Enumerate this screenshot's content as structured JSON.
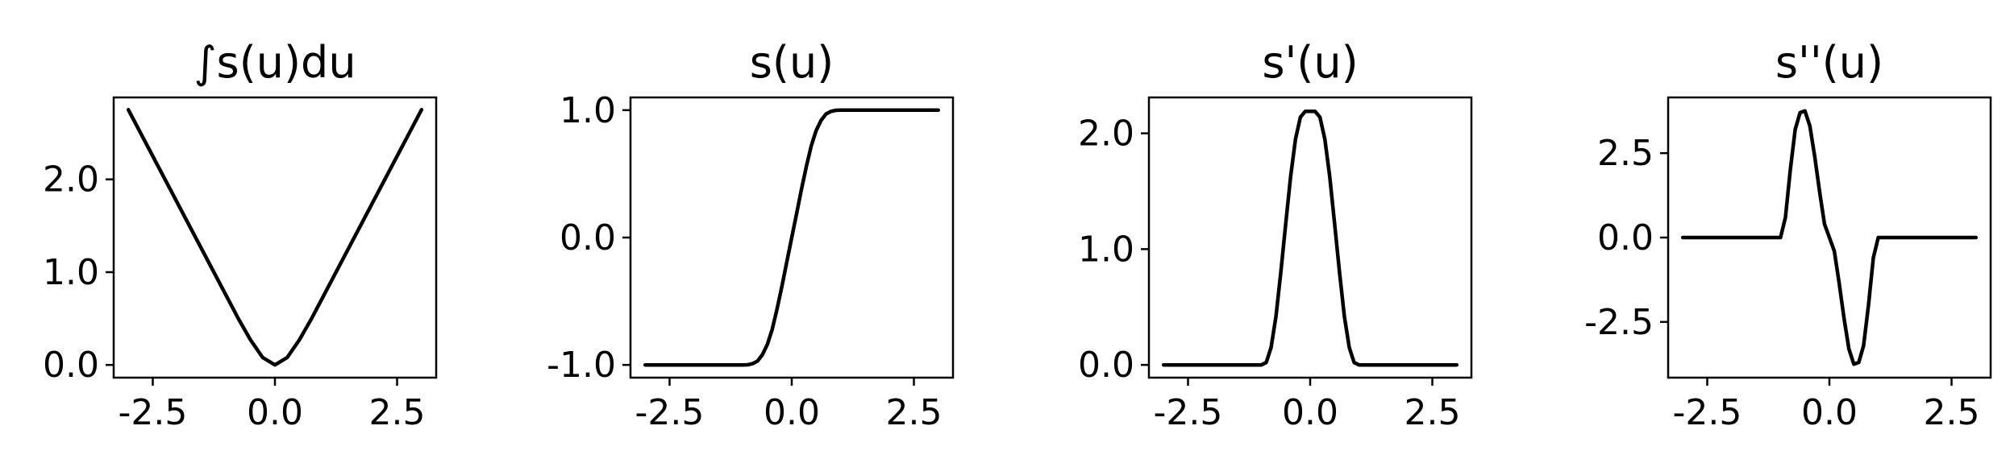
{
  "chart_data": [
    {
      "type": "line",
      "title": "∫s(u)du",
      "xlabel": "",
      "ylabel": "",
      "xlim": [
        -3.3,
        3.3
      ],
      "ylim": [
        -0.137,
        2.883
      ],
      "xticks": [
        -2.5,
        0.0,
        2.5
      ],
      "xtick_labels": [
        "-2.5",
        "0.0",
        "2.5"
      ],
      "yticks": [
        0.0,
        1.0,
        2.0
      ],
      "ytick_labels": [
        "0.0",
        "1.0",
        "2.0"
      ],
      "grid": false,
      "line_color": "#000000",
      "series": [
        {
          "x": [
            -3.0,
            -2.5,
            -2.0,
            -1.5,
            -1.0,
            -0.75,
            -0.5,
            -0.25,
            0.0,
            0.25,
            0.5,
            0.75,
            1.0,
            1.5,
            2.0,
            2.5,
            3.0
          ],
          "values": [
            2.75,
            2.25,
            1.75,
            1.25,
            0.75,
            0.501,
            0.27,
            0.08,
            0.0,
            0.08,
            0.27,
            0.501,
            0.75,
            1.25,
            1.75,
            2.25,
            2.75
          ]
        }
      ]
    },
    {
      "type": "line",
      "title": "s(u)",
      "xlabel": "",
      "ylabel": "",
      "xlim": [
        -3.3,
        3.3
      ],
      "ylim": [
        -1.1,
        1.1
      ],
      "xticks": [
        -2.5,
        0.0,
        2.5
      ],
      "xtick_labels": [
        "-2.5",
        "0.0",
        "2.5"
      ],
      "yticks": [
        -1.0,
        0.0,
        1.0
      ],
      "ytick_labels": [
        "-1.0",
        "0.0",
        "1.0"
      ],
      "grid": false,
      "line_color": "#000000",
      "series": [
        {
          "x": [
            -3.0,
            -1.0,
            -0.9,
            -0.8,
            -0.7,
            -0.6,
            -0.5,
            -0.4,
            -0.3,
            -0.2,
            -0.1,
            0.0,
            0.1,
            0.2,
            0.3,
            0.4,
            0.5,
            0.6,
            0.7,
            0.8,
            0.9,
            1.0,
            3.0
          ],
          "values": [
            -1.0,
            -1.0,
            -0.999,
            -0.99,
            -0.97,
            -0.92,
            -0.84,
            -0.72,
            -0.56,
            -0.38,
            -0.19,
            0.0,
            0.19,
            0.38,
            0.56,
            0.72,
            0.84,
            0.92,
            0.97,
            0.99,
            0.999,
            1.0,
            1.0
          ]
        }
      ]
    },
    {
      "type": "line",
      "title": "s'(u)",
      "xlabel": "",
      "ylabel": "",
      "xlim": [
        -3.3,
        3.3
      ],
      "ylim": [
        -0.11,
        2.31
      ],
      "xticks": [
        -2.5,
        0.0,
        2.5
      ],
      "xtick_labels": [
        "-2.5",
        "0.0",
        "2.5"
      ],
      "yticks": [
        0.0,
        1.0,
        2.0
      ],
      "ytick_labels": [
        "0.0",
        "1.0",
        "2.0"
      ],
      "grid": false,
      "line_color": "#000000",
      "series": [
        {
          "x": [
            -3.0,
            -1.0,
            -0.9,
            -0.8,
            -0.7,
            -0.6,
            -0.5,
            -0.4,
            -0.3,
            -0.2,
            -0.1,
            0.0,
            0.1,
            0.2,
            0.3,
            0.4,
            0.5,
            0.6,
            0.7,
            0.8,
            0.9,
            1.0,
            3.0
          ],
          "values": [
            0.0,
            0.0,
            0.021,
            0.15,
            0.42,
            0.8,
            1.22,
            1.63,
            1.95,
            2.14,
            2.19,
            2.19,
            2.19,
            2.14,
            1.95,
            1.63,
            1.22,
            0.8,
            0.42,
            0.15,
            0.021,
            0.0,
            0.0
          ]
        }
      ]
    },
    {
      "type": "line",
      "title": "s''(u)",
      "xlabel": "",
      "ylabel": "",
      "xlim": [
        -3.3,
        3.3
      ],
      "ylim": [
        -4.15,
        4.15
      ],
      "xticks": [
        -2.5,
        0.0,
        2.5
      ],
      "xtick_labels": [
        "-2.5",
        "0.0",
        "2.5"
      ],
      "yticks": [
        -2.5,
        0.0,
        2.5
      ],
      "ytick_labels": [
        "-2.5",
        "0.0",
        "2.5"
      ],
      "grid": false,
      "line_color": "#000000",
      "series": [
        {
          "x": [
            -3.0,
            -1.0,
            -0.9,
            -0.8,
            -0.7,
            -0.6,
            -0.5,
            -0.4,
            -0.3,
            -0.2,
            -0.1,
            0.0,
            0.1,
            0.2,
            0.3,
            0.4,
            0.5,
            0.6,
            0.7,
            0.8,
            0.9,
            1.0,
            3.0
          ],
          "values": [
            0.0,
            0.0,
            0.6,
            2.0,
            3.2,
            3.7,
            3.75,
            3.3,
            2.4,
            1.35,
            0.4,
            0.0,
            -0.4,
            -1.35,
            -2.4,
            -3.3,
            -3.75,
            -3.7,
            -3.2,
            -2.0,
            -0.6,
            0.0,
            0.0
          ]
        }
      ]
    }
  ]
}
